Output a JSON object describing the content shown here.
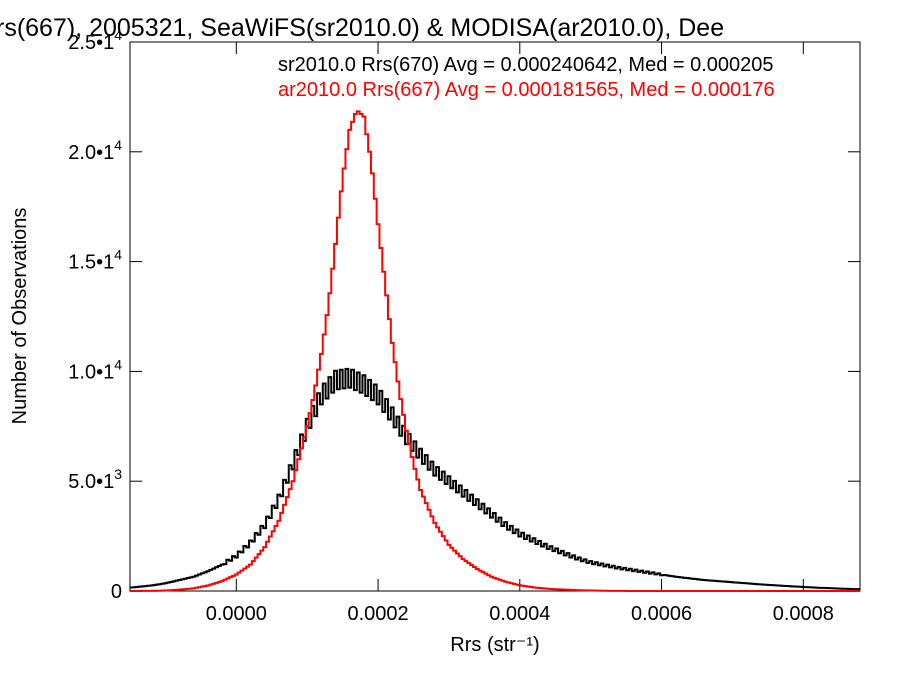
{
  "chart_data": {
    "type": "line",
    "style": "histogram-step",
    "title": "rs(667), 2005321, SeaWiFS(sr2010.0) & MODISA(ar2010.0), Dee",
    "xlabel": "Rrs (str⁻¹)",
    "ylabel": "Number of Observations",
    "xlim": [
      -0.00015,
      0.00088
    ],
    "ylim": [
      0,
      25000
    ],
    "x_ticks": [
      0.0,
      0.0002,
      0.0004,
      0.0006,
      0.0008
    ],
    "x_tick_labels": [
      "0.0000",
      "0.0002",
      "0.0004",
      "0.0006",
      "0.0008"
    ],
    "y_ticks": [
      0,
      5000,
      10000,
      15000,
      20000,
      25000
    ],
    "y_tick_labels": [
      {
        "mant": "0",
        "exp": ""
      },
      {
        "mant": "5.0•1",
        "exp": "3"
      },
      {
        "mant": "1.0•1",
        "exp": "4"
      },
      {
        "mant": "1.5•1",
        "exp": "4"
      },
      {
        "mant": "2.0•1",
        "exp": "4"
      },
      {
        "mant": "2.5•1",
        "exp": "4"
      }
    ],
    "grid": false,
    "legend_position": "top-right",
    "annotations": [
      "sr2010.0 Rrs(670) Avg = 0.000240642, Med = 0.000205",
      "ar2010.0 Rrs(667) Avg = 0.000181565, Med = 0.000176"
    ],
    "series": [
      {
        "color": "#000000",
        "x": [
          -0.00015,
          -0.00012,
          -0.0001,
          -8e-05,
          -6e-05,
          -4e-05,
          -2e-05,
          0.0,
          2e-05,
          4e-05,
          6e-05,
          8e-05,
          0.0001,
          0.00012,
          0.00014,
          0.00016,
          0.00018,
          0.0002,
          0.00022,
          0.00024,
          0.00026,
          0.00028,
          0.0003,
          0.00032,
          0.00034,
          0.00036,
          0.00038,
          0.0004,
          0.00042,
          0.00044,
          0.00046,
          0.00048,
          0.0005,
          0.00054,
          0.00058,
          0.00062,
          0.00066,
          0.0007,
          0.00074,
          0.00078,
          0.00082,
          0.00086,
          0.00088
        ],
        "y": [
          150,
          250,
          350,
          500,
          650,
          900,
          1200,
          1600,
          2200,
          3000,
          4200,
          5800,
          7500,
          8900,
          9600,
          9700,
          9400,
          8900,
          8000,
          7000,
          6200,
          5500,
          5000,
          4500,
          4000,
          3500,
          3000,
          2600,
          2300,
          2000,
          1750,
          1500,
          1300,
          1050,
          850,
          650,
          500,
          400,
          300,
          220,
          150,
          100,
          80
        ]
      },
      {
        "color": "#ff0000",
        "x": [
          -0.00015,
          -0.00012,
          -0.0001,
          -8e-05,
          -6e-05,
          -4e-05,
          -2e-05,
          0.0,
          2e-05,
          4e-05,
          6e-05,
          8e-05,
          0.0001,
          0.00011,
          0.00012,
          0.00013,
          0.00014,
          0.00015,
          0.00016,
          0.00017,
          0.00018,
          0.00019,
          0.0002,
          0.00021,
          0.00022,
          0.00023,
          0.00024,
          0.00025,
          0.00026,
          0.00028,
          0.0003,
          0.00032,
          0.00034,
          0.00036,
          0.00038,
          0.0004,
          0.00042,
          0.00044,
          0.00048,
          0.00052,
          0.00056
        ],
        "y": [
          0,
          5,
          20,
          60,
          120,
          250,
          450,
          750,
          1200,
          2000,
          3200,
          5000,
          7500,
          9000,
          10800,
          13000,
          15800,
          18800,
          21000,
          21900,
          21600,
          19600,
          16700,
          14000,
          11300,
          9100,
          7300,
          5800,
          4600,
          3100,
          2100,
          1450,
          1000,
          650,
          420,
          260,
          160,
          100,
          40,
          10,
          0
        ]
      }
    ]
  }
}
